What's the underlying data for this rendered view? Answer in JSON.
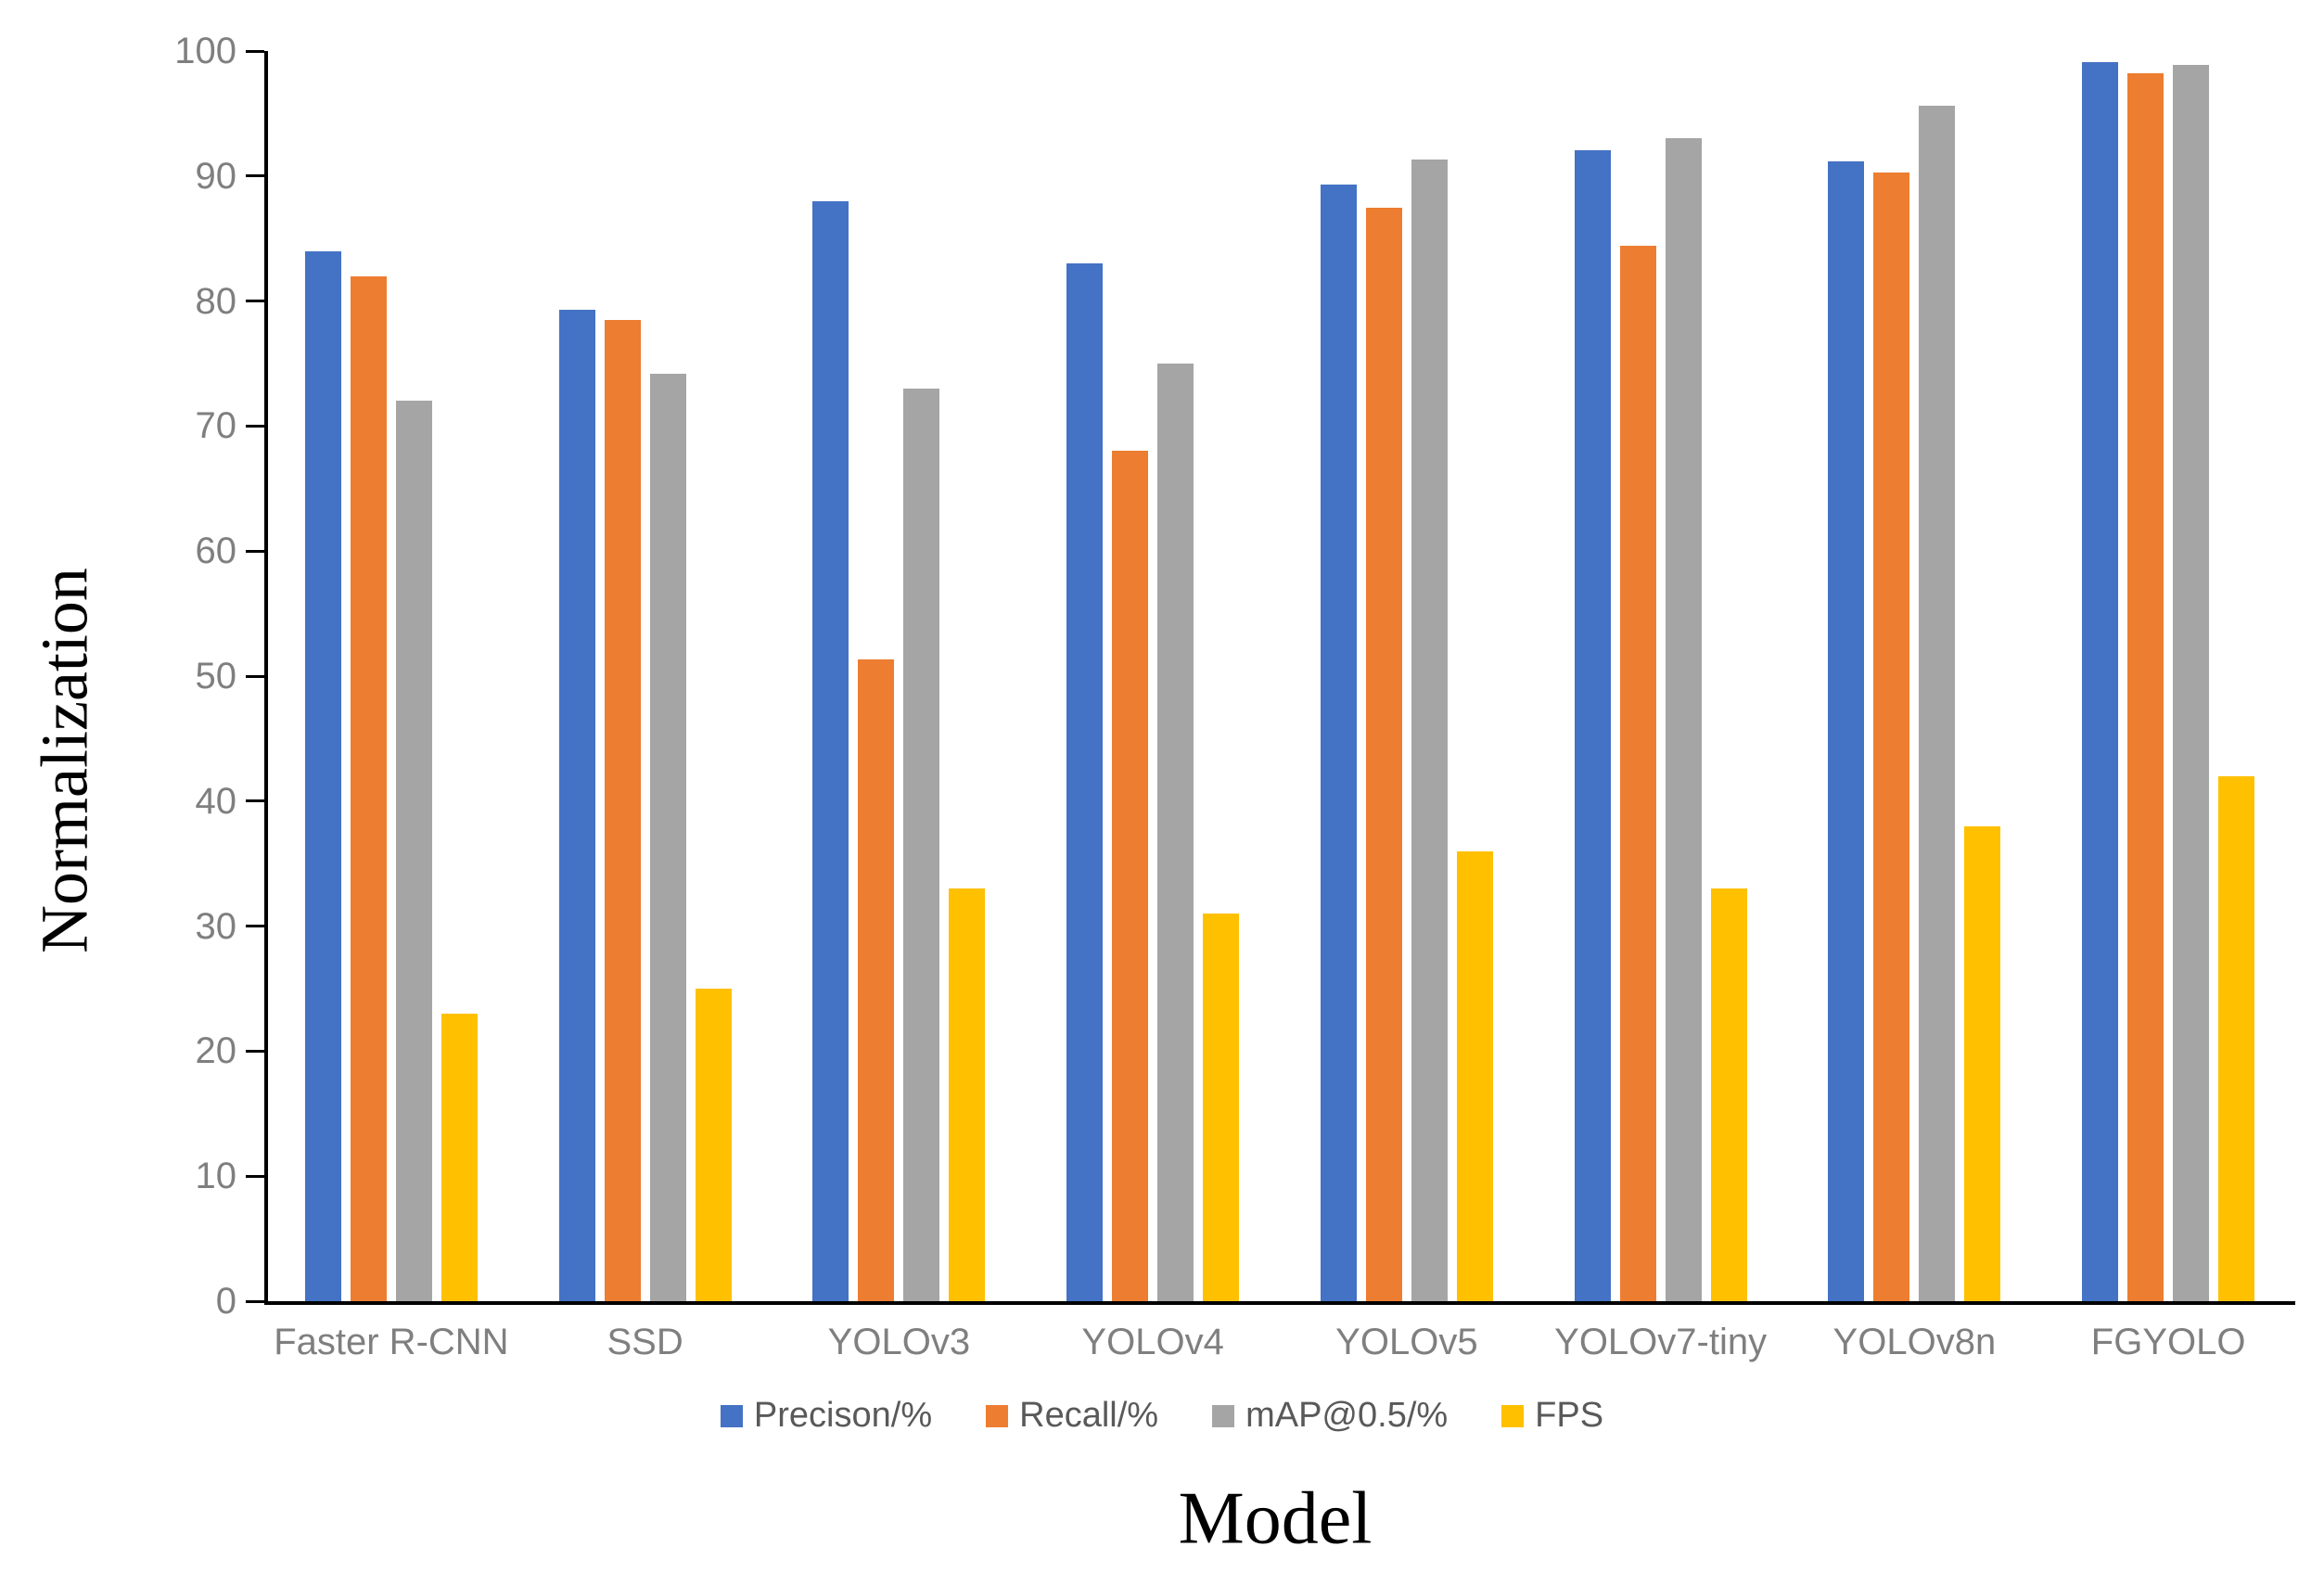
{
  "chart_data": {
    "type": "bar",
    "title": "",
    "xlabel": "Model",
    "ylabel": "Normalization",
    "ylim": [
      0,
      100
    ],
    "yticks": [
      0,
      10,
      20,
      30,
      40,
      50,
      60,
      70,
      80,
      90,
      100
    ],
    "grid": false,
    "legend_position": "bottom-center",
    "categories": [
      "Faster R-CNN",
      "SSD",
      "YOLOv3",
      "YOLOv4",
      "YOLOv5",
      "YOLOv7-tiny",
      "YOLOv8n",
      "FGYOLO"
    ],
    "series": [
      {
        "name": "Precison/%",
        "color": "#4472C4",
        "values": [
          84.0,
          79.3,
          88.0,
          83.0,
          89.3,
          92.1,
          91.2,
          99.1
        ]
      },
      {
        "name": "Recall/%",
        "color": "#ED7D31",
        "values": [
          82.0,
          78.5,
          51.3,
          68.0,
          87.5,
          84.4,
          90.3,
          98.2
        ]
      },
      {
        "name": "mAP@0.5/%",
        "color": "#A5A5A5",
        "values": [
          72.0,
          74.2,
          73.0,
          75.0,
          91.3,
          93.0,
          95.6,
          98.9
        ]
      },
      {
        "name": "FPS",
        "color": "#FFC000",
        "values": [
          23,
          25,
          33,
          31,
          36,
          33,
          38,
          42
        ]
      }
    ]
  },
  "colors": {
    "axis": "#000000",
    "tick_label": "#7f7f7f",
    "category_label": "#7f7f7f",
    "legend_text": "#595959",
    "background": "#ffffff"
  }
}
